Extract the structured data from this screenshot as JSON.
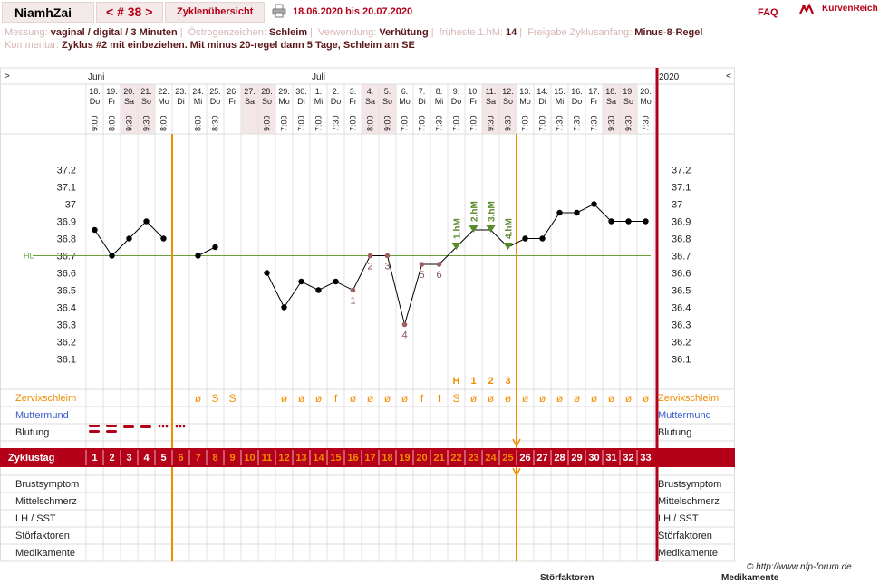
{
  "header": {
    "name": "NiamhZai",
    "cycle_nav": "< # 38 >",
    "overview_link": "Zyklenübersicht",
    "date_range": "18.06.2020 bis 20.07.2020",
    "faq": "FAQ",
    "brand": "KurvenReich"
  },
  "info": {
    "messung_label": "Messung:",
    "messung_value": "vaginal / digital / 3 Minuten",
    "oestrogen_label": "Östrogenzeichen:",
    "oestrogen_value": "Schleim",
    "verwendung_label": "Verwendung:",
    "verwendung_value": "Verhütung",
    "frueheste_label": "früheste 1.hM:",
    "frueheste_value": "14",
    "freigabe_label": "Freigabe Zyklusanfang:",
    "freigabe_value": "Minus-8-Regel",
    "kommentar_label": "Kommentar:",
    "kommentar_value": "Zyklus #2  mit einbeziehen. Mit minus 20-regel dann 5 Tage,  Schleim am SE"
  },
  "footer": {
    "copyright": "© http://www.nfp-forum.de",
    "cut_left": "Störfaktoren",
    "cut_right": "Medikamente"
  },
  "chart_data": {
    "type": "line",
    "nav_left": ">",
    "nav_right": "<",
    "year_label": "2020",
    "month_labels": [
      {
        "label": "Juni",
        "day_index": 0
      },
      {
        "label": "Juli",
        "day_index": 13
      }
    ],
    "dates": [
      "18.",
      "19.",
      "20.",
      "21.",
      "22.",
      "23.",
      "24.",
      "25.",
      "26.",
      "27.",
      "28.",
      "29.",
      "30.",
      "1.",
      "2.",
      "3.",
      "4.",
      "5.",
      "6.",
      "7.",
      "8.",
      "9.",
      "10.",
      "11.",
      "12.",
      "13.",
      "14.",
      "15.",
      "16.",
      "17.",
      "18.",
      "19.",
      "20."
    ],
    "weekdays": [
      "Do",
      "Fr",
      "Sa",
      "So",
      "Mo",
      "Di",
      "Mi",
      "Do",
      "Fr",
      "Sa",
      "So",
      "Mo",
      "Di",
      "Mi",
      "Do",
      "Fr",
      "Sa",
      "So",
      "Mo",
      "Di",
      "Mi",
      "Do",
      "Fr",
      "Sa",
      "So",
      "Mo",
      "Di",
      "Mi",
      "Do",
      "Fr",
      "Sa",
      "So",
      "Mo"
    ],
    "times": [
      "9:00",
      "8:00",
      "9:30",
      "9:30",
      "8:00",
      "",
      "8:00",
      "8:30",
      "",
      "",
      "9:00",
      "7:00",
      "7:00",
      "7:00",
      "7:30",
      "7:00",
      "8:00",
      "9:00",
      "7:00",
      "7:00",
      "7:30",
      "7:00",
      "7:00",
      "9:30",
      "9:30",
      "7:00",
      "7:00",
      "7:30",
      "7:30",
      "7:30",
      "9:30",
      "9:30",
      "7:30"
    ],
    "weekend_indices": [
      2,
      3,
      9,
      10,
      16,
      17,
      23,
      24,
      30,
      31
    ],
    "y_ticks": [
      37.2,
      37.1,
      37.0,
      36.9,
      36.8,
      36.7,
      36.6,
      36.5,
      36.4,
      36.3,
      36.2,
      36.1
    ],
    "y_tick_labels": [
      "37.2",
      "37.1",
      "37",
      "36.9",
      "36.8",
      "36.7",
      "36.6",
      "36.5",
      "36.4",
      "36.3",
      "36.2",
      "36.1"
    ],
    "ylim": [
      36.0,
      37.3
    ],
    "coverline": 36.7,
    "coverline_label": "HL",
    "series": [
      {
        "values": [
          36.85,
          36.7,
          36.8,
          36.9,
          36.8,
          null,
          36.7,
          36.75,
          null,
          null,
          36.6,
          36.4,
          36.55,
          36.5,
          36.55,
          36.5,
          36.7,
          36.7,
          36.3,
          36.65,
          36.65,
          36.75,
          36.85,
          36.85,
          36.75,
          36.8,
          36.8,
          36.95,
          36.95,
          37.0,
          36.9,
          36.9,
          36.9
        ]
      }
    ],
    "line_breaks_after": [
      4,
      7
    ],
    "point_labels": [
      {
        "day_index": 15,
        "text": "1",
        "pos": "below"
      },
      {
        "day_index": 16,
        "text": "2",
        "pos": "below"
      },
      {
        "day_index": 17,
        "text": "3",
        "pos": "below"
      },
      {
        "day_index": 18,
        "text": "4",
        "pos": "below"
      },
      {
        "day_index": 19,
        "text": "5",
        "pos": "below"
      },
      {
        "day_index": 20,
        "text": "6",
        "pos": "below"
      }
    ],
    "high_markers": [
      {
        "day_index": 21,
        "text": "1.hM"
      },
      {
        "day_index": 22,
        "text": "2.hM"
      },
      {
        "day_index": 23,
        "text": "3.hM"
      },
      {
        "day_index": 24,
        "text": "4.hM"
      }
    ],
    "cervix_peak_labels": [
      {
        "day_index": 21,
        "text": "H"
      },
      {
        "day_index": 22,
        "text": "1"
      },
      {
        "day_index": 23,
        "text": "2"
      },
      {
        "day_index": 24,
        "text": "3"
      }
    ],
    "vertical_lines_after_day": [
      4,
      24
    ],
    "mucus": [
      "",
      "",
      "",
      "",
      "",
      "",
      "ø",
      "S",
      "S",
      "",
      "",
      "ø",
      "ø",
      "ø",
      "f",
      "ø",
      "ø",
      "ø",
      "ø",
      "f",
      "f",
      "S",
      "ø",
      "ø",
      "ø",
      "ø",
      "ø",
      "ø",
      "ø",
      "ø",
      "ø",
      "ø",
      "ø"
    ],
    "bleeding_days": [
      {
        "day_index": 0,
        "level": "strong"
      },
      {
        "day_index": 1,
        "level": "strong"
      },
      {
        "day_index": 2,
        "level": "normal"
      },
      {
        "day_index": 3,
        "level": "normal"
      },
      {
        "day_index": 4,
        "level": "spotting"
      },
      {
        "day_index": 5,
        "level": "spotting"
      }
    ],
    "cycle_days": [
      "1",
      "2",
      "3",
      "4",
      "5",
      "6",
      "7",
      "8",
      "9",
      "10",
      "11",
      "12",
      "13",
      "14",
      "15",
      "16",
      "17",
      "18",
      "19",
      "20",
      "21",
      "22",
      "23",
      "24",
      "25",
      "26",
      "27",
      "28",
      "29",
      "30",
      "31",
      "32",
      "33"
    ],
    "cycle_day_highlight_range": [
      5,
      24
    ],
    "row_labels": {
      "zervixschleim": "Zervixschleim",
      "muttermund": "Muttermund",
      "blutung": "Blutung",
      "zyklustag": "Zyklustag",
      "brust": "Brustsymptom",
      "mittelschmerz": "Mittelschmerz",
      "lh": "LH / SST",
      "stoer": "Störfaktoren",
      "medi": "Medikamente"
    },
    "colors": {
      "accent": "#b40018",
      "orange": "#f08c00",
      "green_line": "#6aa03c",
      "high_marker": "#5a8a2a",
      "muttermund": "#3b5bc9",
      "weekend": "#f4e6e6",
      "point": "#000000",
      "labelled_point": "#a06060"
    }
  }
}
